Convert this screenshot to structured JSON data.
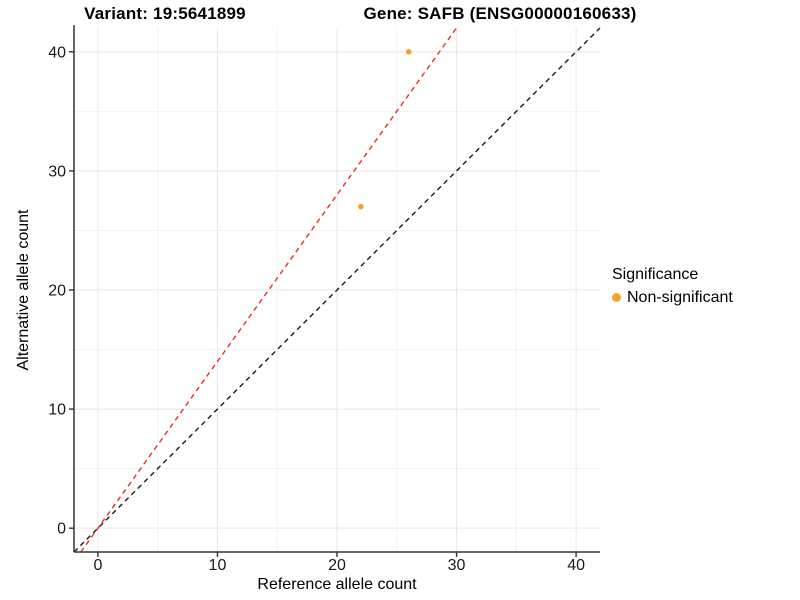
{
  "titles": {
    "variant": "Variant: 19:5641899",
    "gene": "Gene: SAFB (ENSG00000160633)"
  },
  "chart_data": {
    "type": "scatter",
    "xlabel": "Reference allele count",
    "ylabel": "Alternative allele count",
    "xlim": [
      -2,
      42
    ],
    "ylim": [
      -2,
      42
    ],
    "xticks": [
      0,
      10,
      20,
      30,
      40
    ],
    "yticks": [
      0,
      10,
      20,
      30,
      40
    ],
    "minor_xticks": [
      5,
      15,
      25,
      35
    ],
    "minor_yticks": [
      5,
      15,
      25,
      35
    ],
    "grid": true,
    "series": [
      {
        "name": "Non-significant",
        "color": "#F9A029",
        "points": [
          {
            "x": 22,
            "y": 27
          },
          {
            "x": 26,
            "y": 40
          }
        ]
      }
    ],
    "lines": [
      {
        "name": "identity-line",
        "slope": 1,
        "intercept": 0,
        "color": "#1A1A1A",
        "dash": "dashed"
      },
      {
        "name": "expected-ratio-line",
        "slope": 1.4,
        "intercept": 0,
        "color": "#EE2C24",
        "dash": "dashed"
      }
    ],
    "legend": {
      "title": "Significance",
      "position": "right",
      "entries": [
        {
          "label": "Non-significant",
          "color": "#F9A029"
        }
      ]
    }
  },
  "style": {
    "background": "#FFFFFF",
    "grid_major_color": "#E7E7E7",
    "grid_minor_color": "#F2F2F2",
    "axis_color": "#333333",
    "tick_label_color": "#1A1A1A",
    "point_color": "#F9A029"
  }
}
